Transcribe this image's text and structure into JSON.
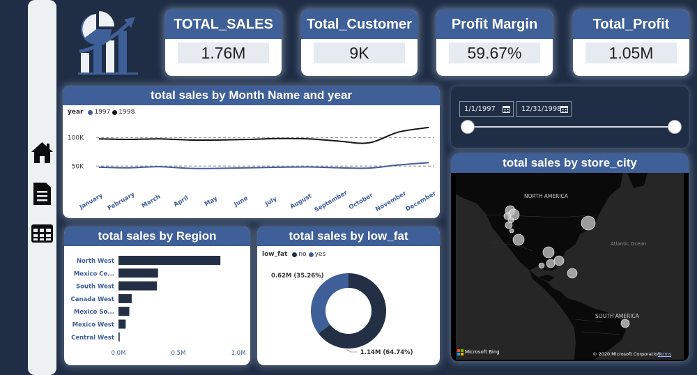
{
  "kpis": [
    {
      "title": "TOTAL_SALES",
      "value": "1.76M"
    },
    {
      "title": "Total_Customer",
      "value": "9K"
    },
    {
      "title": "Profit Margin",
      "value": "59.67%"
    },
    {
      "title": "Total_Profit",
      "value": "1.05M"
    }
  ],
  "line_chart": {
    "title": "total sales by Month Name and year",
    "legend_label": "year",
    "series_names": [
      "1997",
      "1998"
    ],
    "colors": [
      "#3f5f98",
      "#111111"
    ]
  },
  "bar_chart": {
    "title": "total sales by Region",
    "color": "#232f45"
  },
  "donut_chart": {
    "title": "total sales by low_fat",
    "legend_label": "low_fat",
    "legend_items": [
      "no",
      "yes"
    ],
    "colors": [
      "#232f45",
      "#3f5f98"
    ],
    "label_yes": "0.62M (35.26%)",
    "label_no": "1.14M (64.74%)"
  },
  "date_filter": {
    "start": "1/1/1997",
    "end": "12/31/1998"
  },
  "map": {
    "title": "total sales by store_city",
    "label_north_america": "NORTH AMERICA",
    "label_atlantic": "Atlantic Ocean",
    "label_south_america": "SOUTH AMERICA",
    "bing_label": "Microsoft Bing",
    "copyright": "© 2020 Microsoft Corporation",
    "terms": "Terms"
  },
  "chart_data": [
    {
      "type": "line",
      "title": "total sales by Month Name and year",
      "categories": [
        "January",
        "February",
        "March",
        "April",
        "May",
        "June",
        "July",
        "August",
        "September",
        "October",
        "November",
        "December"
      ],
      "series": [
        {
          "name": "1997",
          "values": [
            48000,
            47000,
            49000,
            46000,
            46000,
            47000,
            48000,
            48500,
            47000,
            46500,
            52000,
            56000
          ]
        },
        {
          "name": "1998",
          "values": [
            98000,
            97000,
            98000,
            96000,
            96000,
            97000,
            98500,
            98000,
            94000,
            91000,
            110000,
            118000
          ]
        }
      ],
      "y_ticks": [
        50000,
        100000
      ],
      "y_tick_labels": [
        "50K",
        "100K"
      ],
      "ylim": [
        0,
        140000
      ],
      "reference_lines": [
        50000,
        100000
      ]
    },
    {
      "type": "bar",
      "orientation": "horizontal",
      "title": "total sales by Region",
      "categories": [
        "North West",
        "Mexico Ce...",
        "South West",
        "Canada West",
        "Mexico So...",
        "Mexico West",
        "Central West"
      ],
      "values": [
        850000,
        330000,
        320000,
        110000,
        90000,
        60000,
        10000
      ],
      "x_ticks": [
        0,
        500000,
        1000000
      ],
      "x_tick_labels": [
        "0.0M",
        "0.5M",
        "1.0M"
      ],
      "xlim": [
        0,
        1000000
      ]
    },
    {
      "type": "pie",
      "variant": "donut",
      "title": "total sales by low_fat",
      "categories": [
        "no",
        "yes"
      ],
      "values": [
        1.14,
        0.62
      ],
      "percent": [
        64.74,
        35.26
      ]
    }
  ]
}
